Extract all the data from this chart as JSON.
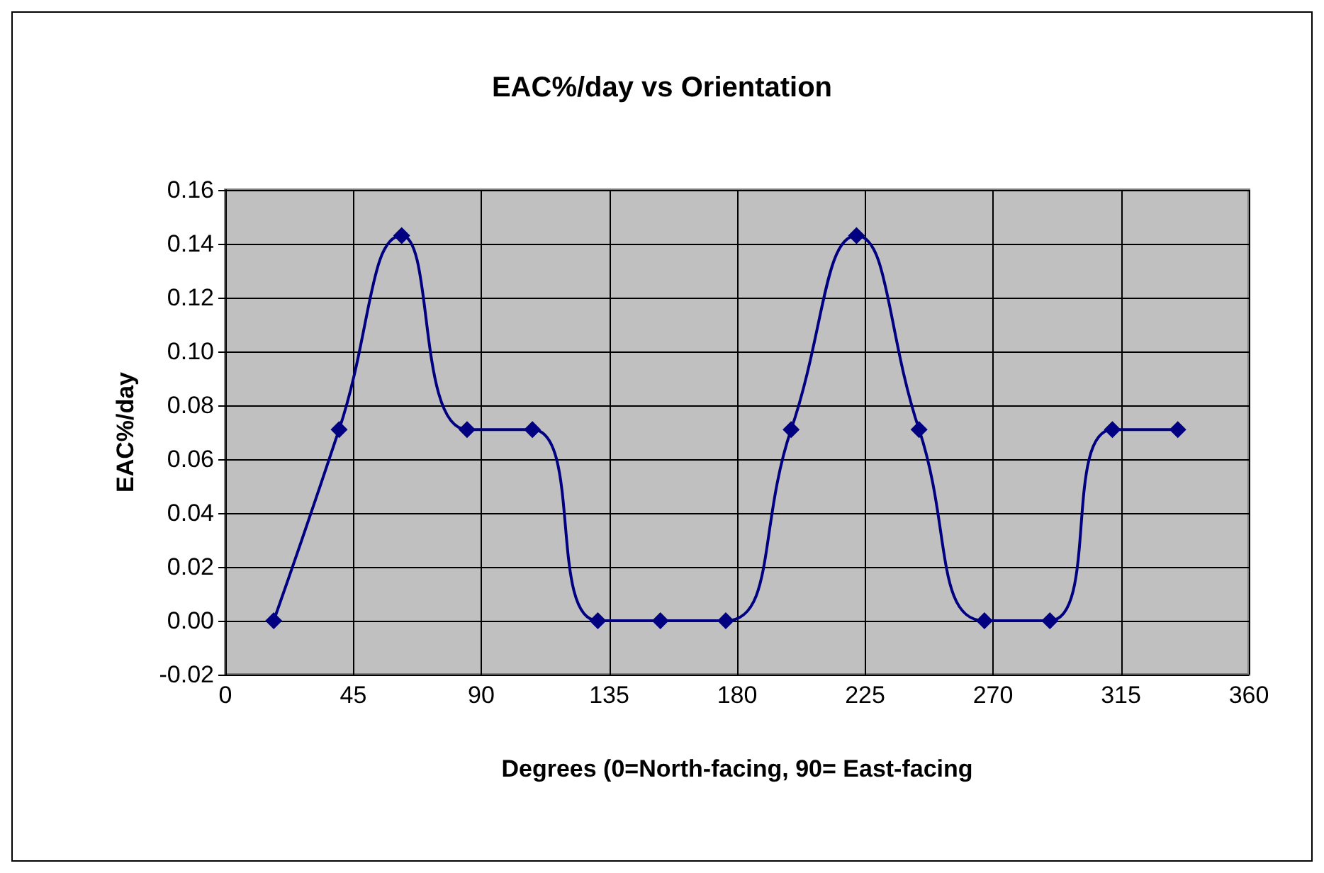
{
  "chart_data": {
    "type": "line",
    "title": "EAC%/day vs Orientation",
    "xlabel": "Degrees (0=North-facing, 90= East-facing",
    "ylabel": "EAC%/day",
    "x": [
      17,
      40,
      62,
      85,
      108,
      131,
      153,
      176,
      199,
      222,
      244,
      267,
      290,
      312,
      335
    ],
    "series": [
      {
        "color": "#000080",
        "values": [
          0,
          0.071,
          0.143,
          0.071,
          0.071,
          0,
          0,
          0,
          0.071,
          0.143,
          0.071,
          0,
          0,
          0.071,
          0.071
        ]
      }
    ],
    "xlim": [
      0,
      360
    ],
    "xticks": [
      0,
      45,
      90,
      135,
      180,
      225,
      270,
      315,
      360
    ],
    "ylim": [
      -0.02,
      0.16
    ],
    "yticks": [
      {
        "value": -0.02,
        "label": "-0.02"
      },
      {
        "value": 0,
        "label": "0.00"
      },
      {
        "value": 0.02,
        "label": "0.02"
      },
      {
        "value": 0.04,
        "label": "0.04"
      },
      {
        "value": 0.06,
        "label": "0.06"
      },
      {
        "value": 0.08,
        "label": "0.08"
      },
      {
        "value": 0.1,
        "label": "0.10"
      },
      {
        "value": 0.12,
        "label": "0.12"
      },
      {
        "value": 0.14,
        "label": "0.14"
      },
      {
        "value": 0.16,
        "label": "0.16"
      }
    ],
    "grid": true,
    "marker": "diamond",
    "line_style": "solid"
  }
}
